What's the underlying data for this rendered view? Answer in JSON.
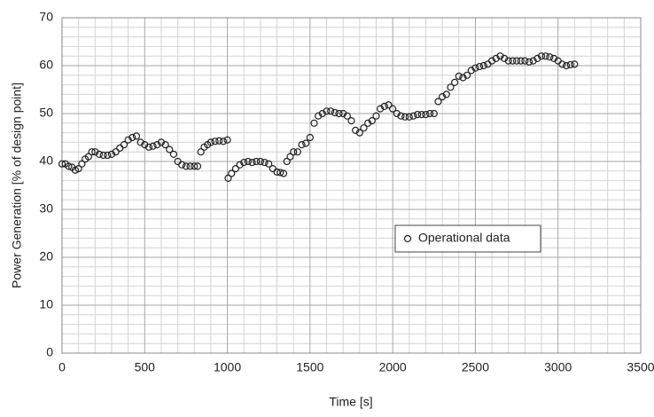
{
  "chart_data": {
    "type": "scatter",
    "xlabel": "Time [s]",
    "ylabel": "Power Generation [% of design point]",
    "xlim": [
      0,
      3500
    ],
    "xticks": [
      0,
      500,
      1000,
      1500,
      2000,
      2500,
      3000,
      3500
    ],
    "ylim": [
      0,
      70
    ],
    "yticks": [
      0,
      10,
      20,
      30,
      40,
      50,
      60,
      70
    ],
    "grid": true,
    "legend": "center right",
    "series": [
      {
        "name": "Operational data",
        "color": "#222222",
        "x": [
          0,
          20,
          40,
          60,
          80,
          100,
          120,
          140,
          160,
          180,
          200,
          225,
          250,
          275,
          300,
          325,
          350,
          375,
          400,
          425,
          450,
          475,
          500,
          525,
          550,
          575,
          600,
          625,
          650,
          675,
          700,
          725,
          750,
          775,
          800,
          820,
          840,
          860,
          880,
          900,
          925,
          950,
          975,
          1000,
          1005,
          1025,
          1050,
          1075,
          1100,
          1125,
          1150,
          1175,
          1200,
          1225,
          1250,
          1275,
          1300,
          1320,
          1340,
          1360,
          1380,
          1400,
          1425,
          1450,
          1475,
          1500,
          1525,
          1550,
          1575,
          1600,
          1625,
          1650,
          1675,
          1700,
          1725,
          1750,
          1775,
          1800,
          1825,
          1850,
          1875,
          1900,
          1925,
          1950,
          1975,
          2000,
          2025,
          2050,
          2075,
          2100,
          2125,
          2150,
          2175,
          2200,
          2225,
          2250,
          2275,
          2300,
          2325,
          2350,
          2375,
          2400,
          2425,
          2450,
          2475,
          2500,
          2525,
          2550,
          2575,
          2600,
          2625,
          2650,
          2675,
          2700,
          2725,
          2750,
          2775,
          2800,
          2825,
          2850,
          2875,
          2900,
          2925,
          2950,
          2975,
          3000,
          3025,
          3050,
          3075,
          3100
        ],
        "values": [
          39.5,
          39.5,
          39,
          38.8,
          38.2,
          38.5,
          39.5,
          40.5,
          41,
          42,
          42,
          41.5,
          41.3,
          41.3,
          41.5,
          42,
          42.8,
          43.5,
          44.5,
          45,
          45.3,
          44,
          43.5,
          43,
          43.2,
          43.5,
          44,
          43.5,
          42.5,
          41.5,
          40,
          39.3,
          39,
          39,
          39,
          39,
          42,
          43,
          43.5,
          44,
          44.2,
          44.3,
          44.2,
          44.5,
          36.5,
          37.5,
          38.5,
          39.3,
          39.8,
          40,
          39.8,
          40,
          40,
          39.8,
          39.5,
          38.5,
          37.8,
          37.7,
          37.5,
          40,
          41,
          42,
          42,
          43.5,
          43.8,
          45,
          48,
          49.5,
          50,
          50.5,
          50.5,
          50.2,
          50,
          50,
          49.5,
          48.5,
          46.5,
          46,
          47,
          48,
          48.5,
          49.5,
          51,
          51.5,
          51.8,
          51,
          50,
          49.5,
          49.3,
          49.3,
          49.5,
          49.8,
          49.8,
          49.8,
          50,
          50,
          52.5,
          53.5,
          54,
          55.5,
          56.5,
          57.8,
          57.5,
          58,
          59,
          59.5,
          59.8,
          60,
          60.3,
          61,
          61.5,
          62,
          61.5,
          61,
          61,
          61,
          61,
          61,
          60.8,
          61,
          61.5,
          62,
          62,
          61.8,
          61.5,
          61,
          60.3,
          60,
          60.2,
          60.3
        ]
      }
    ]
  }
}
